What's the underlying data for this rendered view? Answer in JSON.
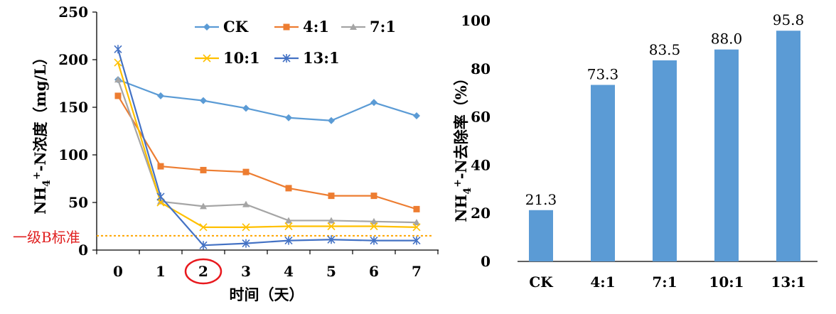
{
  "chart_data": [
    {
      "type": "line",
      "xlabel": "时间（天）",
      "ylabel_parts": [
        "NH",
        "4",
        "+",
        "-N浓度（mg/L）"
      ],
      "ylim": [
        0,
        250
      ],
      "yticks": [
        "0",
        "50",
        "100",
        "150",
        "200",
        "250"
      ],
      "x": [
        "0",
        "1",
        "2",
        "3",
        "4",
        "5",
        "6",
        "7"
      ],
      "highlighted_x": "2",
      "series": [
        {
          "name": "CK",
          "color": "#5b9bd5",
          "marker": "diamond",
          "values": [
            179,
            162,
            157,
            149,
            139,
            136,
            155,
            141
          ]
        },
        {
          "name": "4:1",
          "color": "#ed7d31",
          "marker": "square",
          "values": [
            162,
            88,
            84,
            82,
            65,
            57,
            57,
            43
          ]
        },
        {
          "name": "7:1",
          "color": "#a5a5a5",
          "marker": "triangle",
          "values": [
            179,
            51,
            46,
            48,
            31,
            31,
            30,
            29
          ]
        },
        {
          "name": "10:1",
          "color": "#ffc000",
          "marker": "x",
          "values": [
            197,
            50,
            24,
            24,
            25,
            25,
            25,
            24
          ]
        },
        {
          "name": "13:1",
          "color": "#4472c4",
          "marker": "star",
          "values": [
            211,
            56,
            5,
            7,
            10,
            11,
            10,
            10
          ]
        }
      ],
      "reference_line": {
        "label": "一级B标准",
        "value": 15,
        "color": "#ffa500"
      },
      "legend_position": "top-right"
    },
    {
      "type": "bar",
      "categories": [
        "CK",
        "4:1",
        "7:1",
        "10:1",
        "13:1"
      ],
      "values": [
        21.3,
        73.3,
        83.5,
        88.0,
        95.8
      ],
      "value_labels": [
        "21.3",
        "73.3",
        "83.5",
        "88.0",
        "95.8"
      ],
      "ylabel_parts": [
        "NH",
        "4",
        "+",
        "-N去除率（%）"
      ],
      "ylim": [
        0,
        100
      ],
      "yticks": [
        "0",
        "20",
        "40",
        "60",
        "80",
        "100"
      ],
      "color": "#5b9bd5"
    }
  ]
}
